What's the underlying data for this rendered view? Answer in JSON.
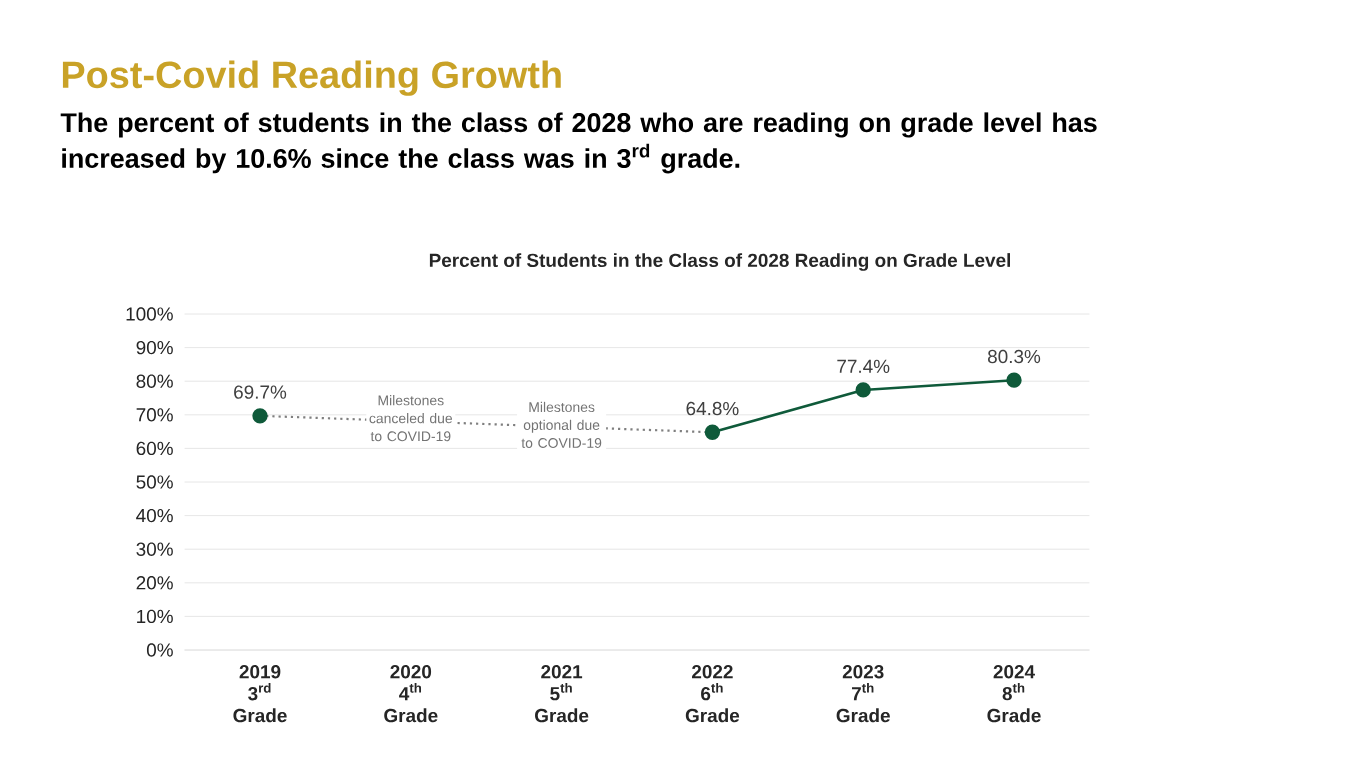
{
  "chart_data": {
    "type": "line",
    "title": "Post-Covid Reading Growth",
    "subtitle": "The percent of students in the class of 2028 who are reading on grade level has increased by 10.6% since the class was in 3$^{rd}$ grade.",
    "annotations": [
      "Percent of Students in the Class of 2028 Reading on Grade Level",
      "Milestones canceled due to COVID-19",
      "Milestones optional due to COVID-19"
    ],
    "categories": [
      "2019\n3$^{rd}$ Grade",
      "2020\n4$^{th}$ Grade",
      "2021\n5$^{th}$ Grade",
      "2022\n6$^{th}$ Grade",
      "2023\n7$^{th}$ Grade",
      "2024\n8$^{th}$ Grade"
    ],
    "series": [
      {
        "color": "#0f5a3a",
        "values": [
          69.7,
          null,
          null,
          64.8,
          77.4,
          80.3
        ],
        "value_labels": [
          "69.7%",
          null,
          null,
          "64.8%",
          "77.4%",
          "80.3%"
        ],
        "marker": "circle",
        "line_style": "solid"
      },
      {
        "color": "#7f7f7f",
        "values": [
          69.7,
          null,
          null,
          64.8,
          null,
          null
        ],
        "marker": "none",
        "line_style": "dotted"
      }
    ],
    "ylim": [
      0,
      100
    ],
    "yticks": [
      {
        "value": 0,
        "label": "0%"
      },
      {
        "value": 10,
        "label": "10%"
      },
      {
        "value": 20,
        "label": "20%"
      },
      {
        "value": 30,
        "label": "30%"
      },
      {
        "value": 40,
        "label": "40%"
      },
      {
        "value": 50,
        "label": "50%"
      },
      {
        "value": 60,
        "label": "60%"
      },
      {
        "value": 70,
        "label": "70%"
      },
      {
        "value": 80,
        "label": "80%"
      },
      {
        "value": 90,
        "label": "90%"
      },
      {
        "value": 100,
        "label": "100%"
      }
    ],
    "grid": "y"
  }
}
